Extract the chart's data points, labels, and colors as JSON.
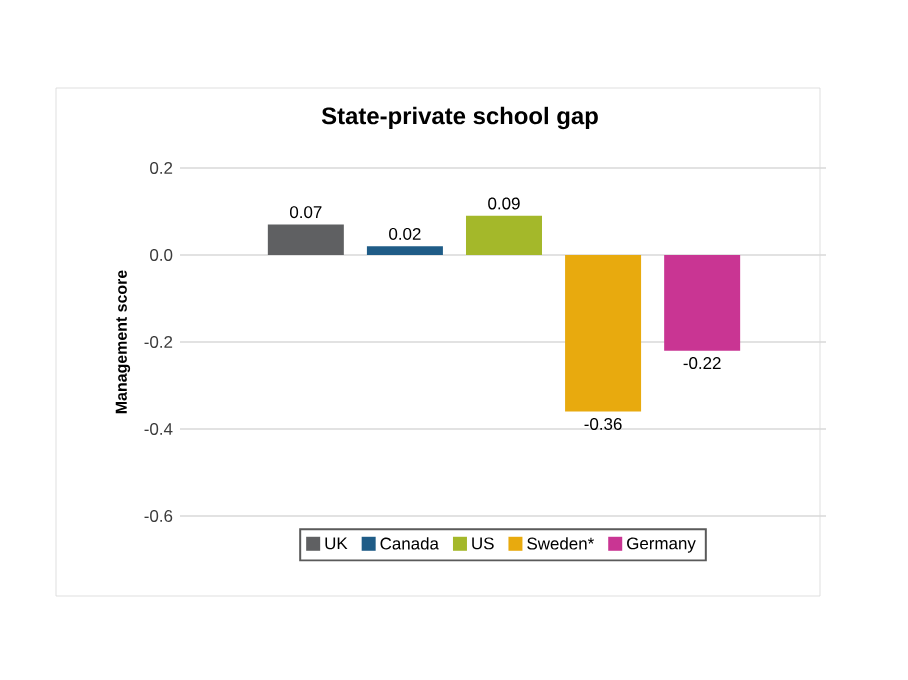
{
  "chart_data": {
    "type": "bar",
    "title": "State-private school gap",
    "ylabel": "Management score",
    "categories": [
      null,
      null,
      null,
      null,
      null
    ],
    "series": [
      {
        "name": "UK",
        "color": "#5f6062",
        "values": [
          0.07,
          null,
          null,
          null,
          null
        ]
      },
      {
        "name": "Canada",
        "color": "#1f5c87",
        "values": [
          null,
          0.02,
          null,
          null,
          null
        ]
      },
      {
        "name": "US",
        "color": "#a4b82a",
        "values": [
          null,
          null,
          0.09,
          null,
          null
        ]
      },
      {
        "name": "Sweden*",
        "color": "#e8aa0e",
        "values": [
          null,
          null,
          null,
          -0.36,
          null
        ]
      },
      {
        "name": "Germany",
        "color": "#c93593",
        "values": [
          null,
          null,
          null,
          null,
          -0.22
        ]
      }
    ],
    "ylim": [
      -0.6,
      0.2
    ],
    "yticks": [
      0.2,
      {
        "value": 0,
        "label": "0.0"
      },
      -0.2,
      -0.4,
      -0.6
    ],
    "grid": "y",
    "legend": "bottom",
    "data_labels": true
  }
}
